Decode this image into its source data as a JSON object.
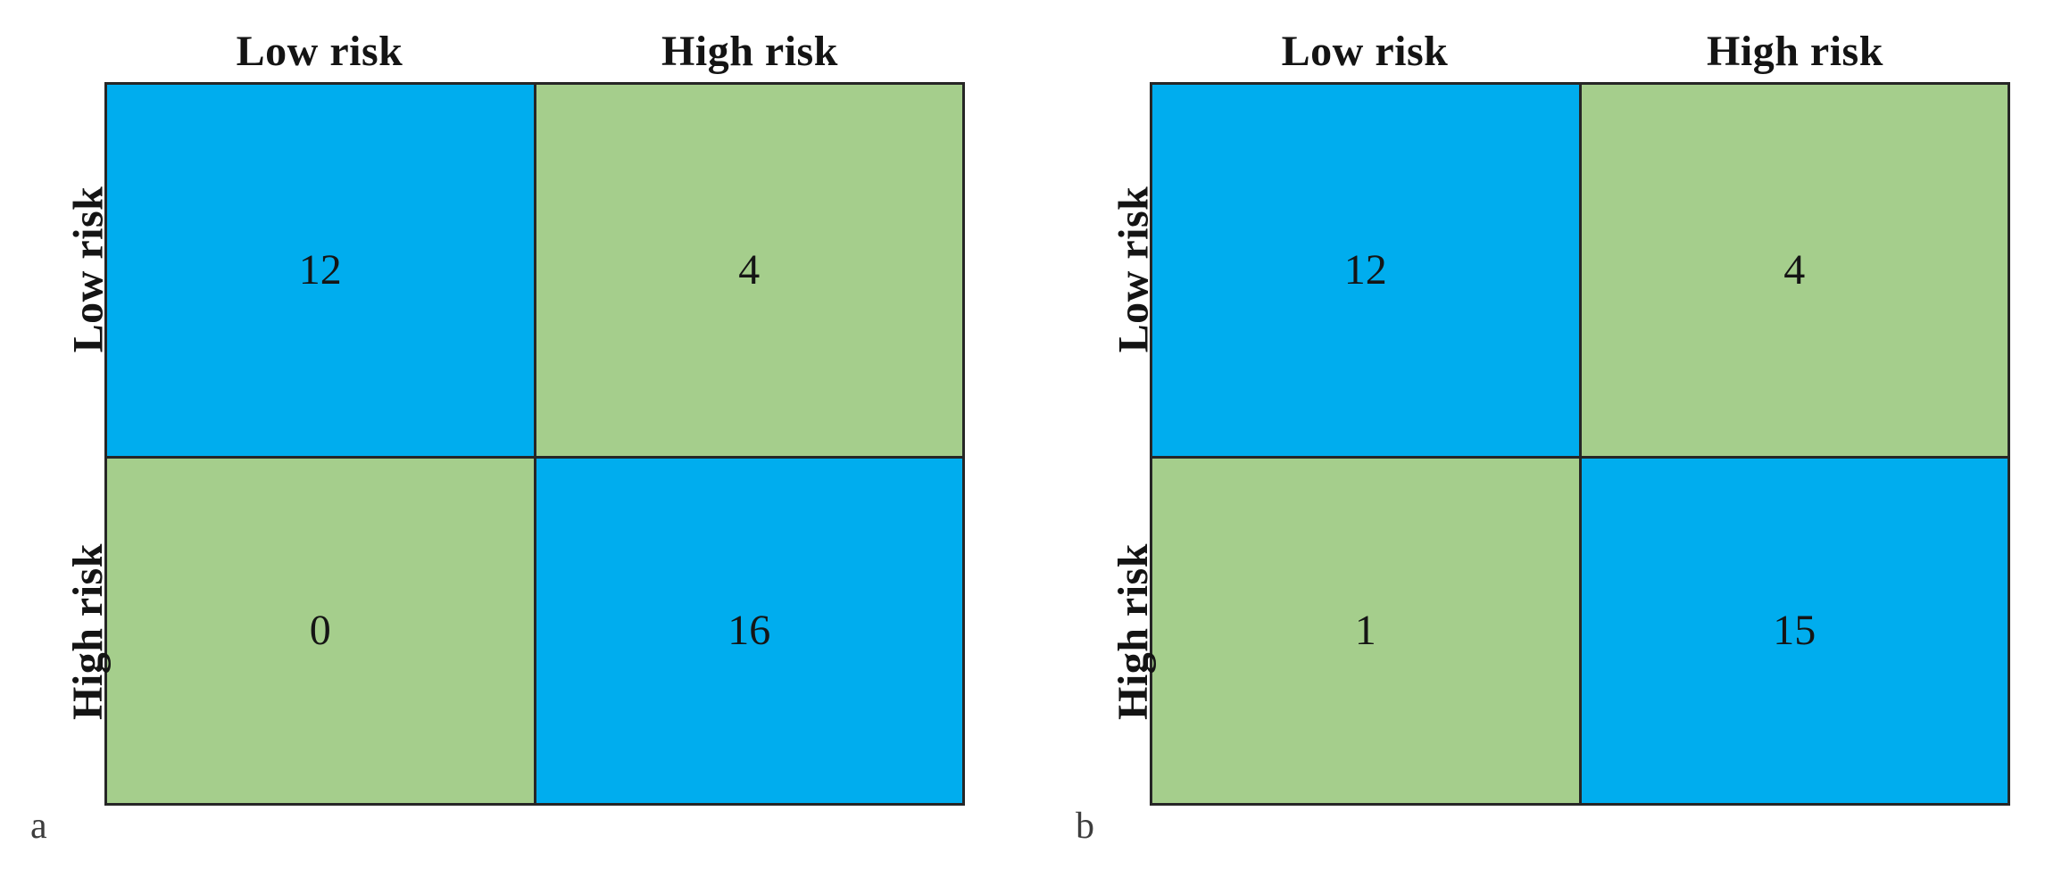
{
  "figure_colors": {
    "match_cell": "#00ADEE",
    "mismatch_cell": "#A5CE8C",
    "grid_line": "#262626",
    "background": "#FFFFFF",
    "label_text": "#141414"
  },
  "chart_data": [
    {
      "type": "heatmap",
      "panel_label": "a",
      "x_categories": [
        "Low risk",
        "High risk"
      ],
      "y_categories": [
        "Low risk",
        "High risk"
      ],
      "values": [
        [
          12,
          4
        ],
        [
          0,
          16
        ]
      ],
      "cell_colors": [
        [
          "#00ADEE",
          "#A5CE8C"
        ],
        [
          "#A5CE8C",
          "#00ADEE"
        ]
      ],
      "legend": "none",
      "grid": "on"
    },
    {
      "type": "heatmap",
      "panel_label": "b",
      "x_categories": [
        "Low risk",
        "High risk"
      ],
      "y_categories": [
        "Low risk",
        "High risk"
      ],
      "values": [
        [
          12,
          4
        ],
        [
          1,
          15
        ]
      ],
      "cell_colors": [
        [
          "#00ADEE",
          "#A5CE8C"
        ],
        [
          "#A5CE8C",
          "#00ADEE"
        ]
      ],
      "legend": "none",
      "grid": "on"
    }
  ]
}
